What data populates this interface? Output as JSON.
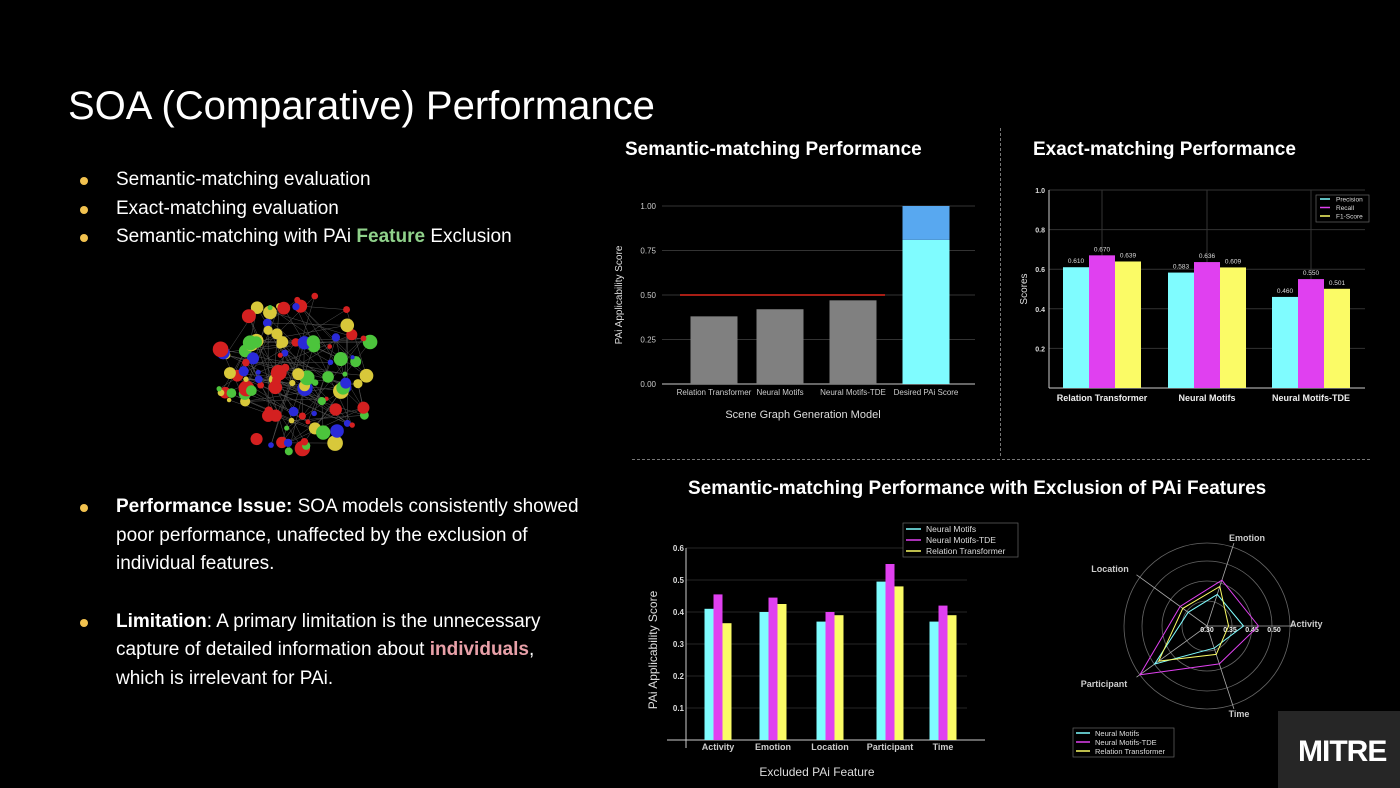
{
  "title": "SOA (Comparative) Performance",
  "bullets_top": [
    {
      "text": "Semantic-matching evaluation"
    },
    {
      "text": "Exact-matching evaluation"
    },
    {
      "pre": "Semantic-matching with PAi ",
      "highlight": "Feature",
      "post": " Exclusion"
    }
  ],
  "bullets_bottom": [
    {
      "label": "Performance Issue:",
      "text": " SOA models consistently showed poor performance, unaffected by the exclusion of individual features."
    },
    {
      "label": "Limitation",
      "text": ": A primary limitation is the unnecessary capture of detailed information about ",
      "highlight": "individuals",
      "post": ", which is irrelevant for PAi."
    }
  ],
  "logo": "MITRE",
  "colors": {
    "cyan": "#7ffcff",
    "magenta": "#e040f0",
    "yellow": "#fbfb66",
    "gray": "#808080",
    "blue": "#58a8f0",
    "red": "#e0281c",
    "bullet": "#f2c24f"
  },
  "chart_data": [
    {
      "type": "bar",
      "title": "Semantic-matching Performance",
      "xlabel": "Scene Graph Generation Model",
      "ylabel": "PAi Applicability Score",
      "categories": [
        "Relation Transformer",
        "Neural Motifs",
        "Neural Motifs-TDE",
        "Desired PAi Score"
      ],
      "values": [
        0.38,
        0.42,
        0.47,
        1.0
      ],
      "desired_split": 0.81,
      "threshold": 0.5,
      "ylim": [
        0,
        1.05
      ],
      "yticks": [
        "0.00",
        "0.25",
        "0.50",
        "0.75",
        "1.00"
      ]
    },
    {
      "type": "bar",
      "title": "Exact-matching Performance",
      "xlabel": "",
      "ylabel": "Scores",
      "categories": [
        "Relation Transformer",
        "Neural Motifs",
        "Neural Motifs-TDE"
      ],
      "series": [
        {
          "name": "Precision",
          "values": [
            0.61,
            0.583,
            0.46
          ],
          "labels": [
            "0.610",
            "0.583",
            "0.460"
          ]
        },
        {
          "name": "Recall",
          "values": [
            0.67,
            0.636,
            0.55
          ],
          "labels": [
            "0.670",
            "0.636",
            "0.550"
          ]
        },
        {
          "name": "F1-Score",
          "values": [
            0.639,
            0.609,
            0.501
          ],
          "labels": [
            "0.639",
            "0.609",
            "0.501"
          ]
        }
      ],
      "ylim": [
        0,
        1.0
      ],
      "yticks": [
        "0.2",
        "0.4",
        "0.6",
        "0.8",
        "1.0"
      ],
      "legend": "top-right"
    },
    {
      "type": "bar",
      "title": "Semantic-matching Performance with Exclusion of PAi Features",
      "xlabel": "Excluded PAi Feature",
      "ylabel": "PAi Applicability Score",
      "categories": [
        "Activity",
        "Emotion",
        "Location",
        "Participant",
        "Time"
      ],
      "series": [
        {
          "name": "Neural Motifs",
          "values": [
            0.41,
            0.4,
            0.37,
            0.495,
            0.37
          ]
        },
        {
          "name": "Neural Motifs-TDE",
          "values": [
            0.455,
            0.445,
            0.4,
            0.55,
            0.42
          ]
        },
        {
          "name": "Relation Transformer",
          "values": [
            0.365,
            0.425,
            0.39,
            0.48,
            0.39
          ]
        }
      ],
      "ylim": [
        0,
        0.6
      ],
      "yticks": [
        "0.1",
        "0.2",
        "0.3",
        "0.4",
        "0.5",
        "0.6"
      ],
      "legend": "top-right"
    },
    {
      "type": "radar",
      "axes": [
        "Activity",
        "Emotion",
        "Location",
        "Participant",
        "Time"
      ],
      "rticks": [
        "0.30",
        "0.35",
        "0.45",
        "0.50"
      ],
      "series": [
        {
          "name": "Neural Motifs",
          "values": [
            0.41,
            0.4,
            0.37,
            0.495,
            0.37
          ]
        },
        {
          "name": "Neural Motifs-TDE",
          "values": [
            0.455,
            0.445,
            0.4,
            0.55,
            0.42
          ]
        },
        {
          "name": "Relation Transformer",
          "values": [
            0.365,
            0.425,
            0.39,
            0.48,
            0.39
          ]
        }
      ],
      "legend": "bottom-left"
    }
  ]
}
